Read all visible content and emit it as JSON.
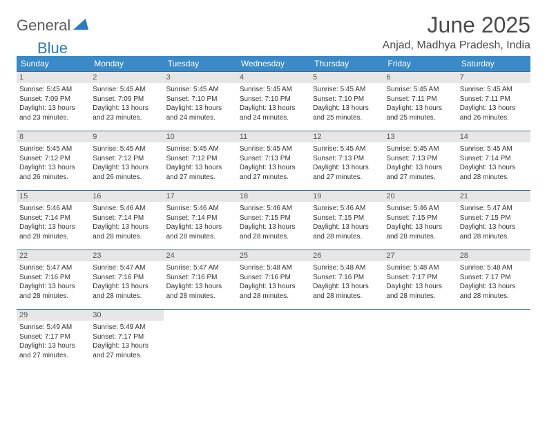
{
  "logo": {
    "general": "General",
    "blue": "Blue"
  },
  "title": "June 2025",
  "location": "Anjad, Madhya Pradesh, India",
  "colors": {
    "header_bg": "#3a8ac8",
    "header_text": "#ffffff",
    "border": "#3a6a99",
    "daynum_bg": "#e6e6e6",
    "text": "#333333",
    "title_color": "#4a4a4a",
    "logo_gray": "#5a5a5a",
    "logo_blue": "#2b7bbf"
  },
  "weekdays": [
    "Sunday",
    "Monday",
    "Tuesday",
    "Wednesday",
    "Thursday",
    "Friday",
    "Saturday"
  ],
  "days": [
    {
      "n": "1",
      "sr": "Sunrise: 5:45 AM",
      "ss": "Sunset: 7:09 PM",
      "dl": "Daylight: 13 hours and 23 minutes."
    },
    {
      "n": "2",
      "sr": "Sunrise: 5:45 AM",
      "ss": "Sunset: 7:09 PM",
      "dl": "Daylight: 13 hours and 23 minutes."
    },
    {
      "n": "3",
      "sr": "Sunrise: 5:45 AM",
      "ss": "Sunset: 7:10 PM",
      "dl": "Daylight: 13 hours and 24 minutes."
    },
    {
      "n": "4",
      "sr": "Sunrise: 5:45 AM",
      "ss": "Sunset: 7:10 PM",
      "dl": "Daylight: 13 hours and 24 minutes."
    },
    {
      "n": "5",
      "sr": "Sunrise: 5:45 AM",
      "ss": "Sunset: 7:10 PM",
      "dl": "Daylight: 13 hours and 25 minutes."
    },
    {
      "n": "6",
      "sr": "Sunrise: 5:45 AM",
      "ss": "Sunset: 7:11 PM",
      "dl": "Daylight: 13 hours and 25 minutes."
    },
    {
      "n": "7",
      "sr": "Sunrise: 5:45 AM",
      "ss": "Sunset: 7:11 PM",
      "dl": "Daylight: 13 hours and 26 minutes."
    },
    {
      "n": "8",
      "sr": "Sunrise: 5:45 AM",
      "ss": "Sunset: 7:12 PM",
      "dl": "Daylight: 13 hours and 26 minutes."
    },
    {
      "n": "9",
      "sr": "Sunrise: 5:45 AM",
      "ss": "Sunset: 7:12 PM",
      "dl": "Daylight: 13 hours and 26 minutes."
    },
    {
      "n": "10",
      "sr": "Sunrise: 5:45 AM",
      "ss": "Sunset: 7:12 PM",
      "dl": "Daylight: 13 hours and 27 minutes."
    },
    {
      "n": "11",
      "sr": "Sunrise: 5:45 AM",
      "ss": "Sunset: 7:13 PM",
      "dl": "Daylight: 13 hours and 27 minutes."
    },
    {
      "n": "12",
      "sr": "Sunrise: 5:45 AM",
      "ss": "Sunset: 7:13 PM",
      "dl": "Daylight: 13 hours and 27 minutes."
    },
    {
      "n": "13",
      "sr": "Sunrise: 5:45 AM",
      "ss": "Sunset: 7:13 PM",
      "dl": "Daylight: 13 hours and 27 minutes."
    },
    {
      "n": "14",
      "sr": "Sunrise: 5:45 AM",
      "ss": "Sunset: 7:14 PM",
      "dl": "Daylight: 13 hours and 28 minutes."
    },
    {
      "n": "15",
      "sr": "Sunrise: 5:46 AM",
      "ss": "Sunset: 7:14 PM",
      "dl": "Daylight: 13 hours and 28 minutes."
    },
    {
      "n": "16",
      "sr": "Sunrise: 5:46 AM",
      "ss": "Sunset: 7:14 PM",
      "dl": "Daylight: 13 hours and 28 minutes."
    },
    {
      "n": "17",
      "sr": "Sunrise: 5:46 AM",
      "ss": "Sunset: 7:14 PM",
      "dl": "Daylight: 13 hours and 28 minutes."
    },
    {
      "n": "18",
      "sr": "Sunrise: 5:46 AM",
      "ss": "Sunset: 7:15 PM",
      "dl": "Daylight: 13 hours and 28 minutes."
    },
    {
      "n": "19",
      "sr": "Sunrise: 5:46 AM",
      "ss": "Sunset: 7:15 PM",
      "dl": "Daylight: 13 hours and 28 minutes."
    },
    {
      "n": "20",
      "sr": "Sunrise: 5:46 AM",
      "ss": "Sunset: 7:15 PM",
      "dl": "Daylight: 13 hours and 28 minutes."
    },
    {
      "n": "21",
      "sr": "Sunrise: 5:47 AM",
      "ss": "Sunset: 7:15 PM",
      "dl": "Daylight: 13 hours and 28 minutes."
    },
    {
      "n": "22",
      "sr": "Sunrise: 5:47 AM",
      "ss": "Sunset: 7:16 PM",
      "dl": "Daylight: 13 hours and 28 minutes."
    },
    {
      "n": "23",
      "sr": "Sunrise: 5:47 AM",
      "ss": "Sunset: 7:16 PM",
      "dl": "Daylight: 13 hours and 28 minutes."
    },
    {
      "n": "24",
      "sr": "Sunrise: 5:47 AM",
      "ss": "Sunset: 7:16 PM",
      "dl": "Daylight: 13 hours and 28 minutes."
    },
    {
      "n": "25",
      "sr": "Sunrise: 5:48 AM",
      "ss": "Sunset: 7:16 PM",
      "dl": "Daylight: 13 hours and 28 minutes."
    },
    {
      "n": "26",
      "sr": "Sunrise: 5:48 AM",
      "ss": "Sunset: 7:16 PM",
      "dl": "Daylight: 13 hours and 28 minutes."
    },
    {
      "n": "27",
      "sr": "Sunrise: 5:48 AM",
      "ss": "Sunset: 7:17 PM",
      "dl": "Daylight: 13 hours and 28 minutes."
    },
    {
      "n": "28",
      "sr": "Sunrise: 5:48 AM",
      "ss": "Sunset: 7:17 PM",
      "dl": "Daylight: 13 hours and 28 minutes."
    },
    {
      "n": "29",
      "sr": "Sunrise: 5:49 AM",
      "ss": "Sunset: 7:17 PM",
      "dl": "Daylight: 13 hours and 27 minutes."
    },
    {
      "n": "30",
      "sr": "Sunrise: 5:49 AM",
      "ss": "Sunset: 7:17 PM",
      "dl": "Daylight: 13 hours and 27 minutes."
    }
  ]
}
